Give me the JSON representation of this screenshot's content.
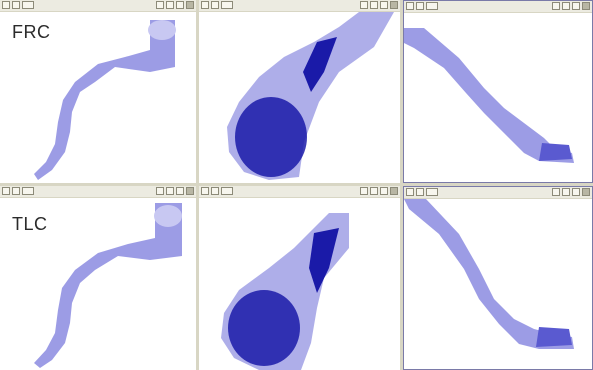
{
  "rows": [
    {
      "label": "FRC"
    },
    {
      "label": "TLC"
    }
  ],
  "colors": {
    "light": "#8b8be0",
    "dark": "#1a1aa8",
    "toolbar": "#ecebe1"
  },
  "icons": [
    "zoom-icon",
    "pointer-icon",
    "layout-icon",
    "window-controls-icon"
  ]
}
